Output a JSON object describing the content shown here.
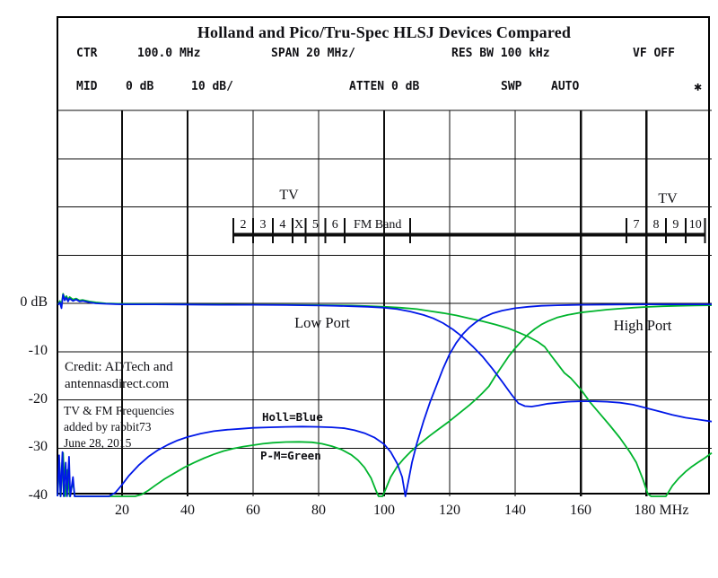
{
  "header": {
    "title": "Holland and Pico/Tru-Spec HLSJ Devices Compared",
    "row1": [
      {
        "label": "CTR"
      },
      {
        "label": "100.0 MHz"
      },
      {
        "label": "SPAN 20 MHz/"
      },
      {
        "label": "RES BW 100 kHz"
      },
      {
        "label": "VF OFF"
      }
    ],
    "row2": [
      {
        "label": "MID"
      },
      {
        "label": "0 dB"
      },
      {
        "label": "10 dB/"
      },
      {
        "label": "ATTEN 0 dB"
      },
      {
        "label": "SWP"
      },
      {
        "label": "AUTO"
      },
      {
        "label": "✱"
      }
    ]
  },
  "annotations": {
    "tv_left": "TV",
    "tv_right": "TV",
    "low_port": "Low Port",
    "high_port": "High Port",
    "legend_blue": "Holl=Blue",
    "legend_green": "P-M=Green",
    "credit_line1": "Credit: ADTech and",
    "credit_line2": "antennasdirect.com",
    "note_line1": "TV & FM Frequencies",
    "note_line2": "added by rabbit73",
    "note_line3": "June 28, 2015"
  },
  "chart_data": {
    "type": "line",
    "title": "Holland and Pico/Tru-Spec HLSJ Devices Compared",
    "xlabel": "MHz",
    "ylabel": "dB",
    "x_axis": {
      "unit": "MHz",
      "range": [
        0,
        200
      ],
      "mhz_per_div": 20,
      "ticks": [
        {
          "mhz": 20,
          "label": "20"
        },
        {
          "mhz": 40,
          "label": "40"
        },
        {
          "mhz": 60,
          "label": "60"
        },
        {
          "mhz": 80,
          "label": "80"
        },
        {
          "mhz": 100,
          "label": "100"
        },
        {
          "mhz": 120,
          "label": "120"
        },
        {
          "mhz": 140,
          "label": "140"
        },
        {
          "mhz": 160,
          "label": "160"
        },
        {
          "mhz": 180,
          "label": "180 MHz"
        }
      ]
    },
    "y_axis": {
      "unit": "dB",
      "db_per_div": 10,
      "labeled_range": [
        -40,
        0
      ],
      "ticks": [
        {
          "db": 0,
          "label": "0 dB"
        },
        {
          "db": -10,
          "label": "-10"
        },
        {
          "db": -20,
          "label": "-20"
        },
        {
          "db": -30,
          "label": "-30"
        },
        {
          "db": -40,
          "label": "-40"
        }
      ]
    },
    "band_markers": {
      "line_from_mhz": 54,
      "line_to_mhz": 198,
      "ticks_mhz": [
        54,
        60,
        66,
        72,
        76,
        82,
        88,
        108,
        174,
        180,
        186,
        192,
        198
      ],
      "labels": [
        {
          "text": "2",
          "mhz": 57
        },
        {
          "text": "3",
          "mhz": 63
        },
        {
          "text": "4",
          "mhz": 69
        },
        {
          "text": "X",
          "mhz": 74
        },
        {
          "text": "5",
          "mhz": 79
        },
        {
          "text": "6",
          "mhz": 85
        },
        {
          "text": "FM Band",
          "mhz": 98
        },
        {
          "text": "7",
          "mhz": 177
        },
        {
          "text": "8",
          "mhz": 183
        },
        {
          "text": "9",
          "mhz": 189
        },
        {
          "text": "10",
          "mhz": 195
        }
      ]
    },
    "colors": {
      "holland": "#0018e8",
      "pico_tru_spec": "#00b42d"
    },
    "series": [
      {
        "name": "Holland low port",
        "color": "#0018e8",
        "points": [
          [
            0.5,
            -0.3
          ],
          [
            1,
            0.2
          ],
          [
            1.5,
            -1
          ],
          [
            2,
            1.8
          ],
          [
            2.5,
            0.6
          ],
          [
            3,
            1.2
          ],
          [
            3.5,
            0.4
          ],
          [
            4,
            1
          ],
          [
            5,
            0.5
          ],
          [
            6,
            0.8
          ],
          [
            7,
            0.4
          ],
          [
            8,
            0.5
          ],
          [
            10,
            0.2
          ],
          [
            12,
            0
          ],
          [
            15,
            -0.1
          ],
          [
            20,
            -0.2
          ],
          [
            30,
            -0.2
          ],
          [
            40,
            -0.25
          ],
          [
            50,
            -0.3
          ],
          [
            60,
            -0.3
          ],
          [
            70,
            -0.35
          ],
          [
            80,
            -0.45
          ],
          [
            85,
            -0.5
          ],
          [
            90,
            -0.6
          ],
          [
            95,
            -0.7
          ],
          [
            100,
            -0.9
          ],
          [
            104,
            -1.2
          ],
          [
            108,
            -1.7
          ],
          [
            112,
            -2.4
          ],
          [
            115,
            -3.1
          ],
          [
            118,
            -4.1
          ],
          [
            121,
            -5.4
          ],
          [
            124,
            -7
          ],
          [
            127,
            -8.9
          ],
          [
            130,
            -11
          ],
          [
            133,
            -13.5
          ],
          [
            136,
            -16.2
          ],
          [
            139,
            -19
          ],
          [
            141,
            -20.7
          ],
          [
            143,
            -21.3
          ],
          [
            145,
            -21.4
          ],
          [
            147,
            -21.2
          ],
          [
            150,
            -20.8
          ],
          [
            153,
            -20.6
          ],
          [
            156,
            -20.4
          ],
          [
            160,
            -20.3
          ],
          [
            164,
            -20.3
          ],
          [
            168,
            -20.4
          ],
          [
            172,
            -20.6
          ],
          [
            176,
            -21
          ],
          [
            180,
            -21.7
          ],
          [
            184,
            -22.4
          ],
          [
            188,
            -23.1
          ],
          [
            192,
            -23.7
          ],
          [
            196,
            -24.1
          ],
          [
            200,
            -24.5
          ]
        ]
      },
      {
        "name": "Holland high port",
        "color": "#0018e8",
        "points": [
          [
            0.3,
            -40
          ],
          [
            0.8,
            -31.5
          ],
          [
            1.2,
            -40
          ],
          [
            1.8,
            -30.8
          ],
          [
            2.2,
            -40
          ],
          [
            2.8,
            -33
          ],
          [
            3.2,
            -40
          ],
          [
            3.8,
            -31.8
          ],
          [
            4.2,
            -40
          ],
          [
            5,
            -36
          ],
          [
            5.5,
            -40
          ],
          [
            8,
            -40
          ],
          [
            12,
            -40
          ],
          [
            16,
            -40
          ],
          [
            18,
            -39.2
          ],
          [
            20,
            -37.6
          ],
          [
            22,
            -35.8
          ],
          [
            25,
            -33.6
          ],
          [
            28,
            -31.8
          ],
          [
            31,
            -30.4
          ],
          [
            34,
            -29.3
          ],
          [
            37,
            -28.4
          ],
          [
            40,
            -27.7
          ],
          [
            44,
            -27
          ],
          [
            48,
            -26.5
          ],
          [
            52,
            -26.2
          ],
          [
            56,
            -26
          ],
          [
            60,
            -25.8
          ],
          [
            65,
            -25.7
          ],
          [
            70,
            -25.6
          ],
          [
            75,
            -25.55
          ],
          [
            80,
            -25.6
          ],
          [
            84,
            -25.7
          ],
          [
            88,
            -25.9
          ],
          [
            91,
            -26.3
          ],
          [
            94,
            -26.9
          ],
          [
            97,
            -27.8
          ],
          [
            100,
            -29.2
          ],
          [
            102,
            -30.8
          ],
          [
            104,
            -33.2
          ],
          [
            105.5,
            -36
          ],
          [
            106.5,
            -40
          ],
          [
            107.5,
            -36.5
          ],
          [
            108.5,
            -33
          ],
          [
            110,
            -29
          ],
          [
            112,
            -24.5
          ],
          [
            114,
            -20.5
          ],
          [
            116,
            -17
          ],
          [
            118,
            -13.5
          ],
          [
            120,
            -10.5
          ],
          [
            122,
            -8.2
          ],
          [
            124,
            -6.4
          ],
          [
            126,
            -5
          ],
          [
            128,
            -3.9
          ],
          [
            130,
            -3
          ],
          [
            133,
            -2.1
          ],
          [
            136,
            -1.5
          ],
          [
            140,
            -1
          ],
          [
            144,
            -0.7
          ],
          [
            148,
            -0.5
          ],
          [
            153,
            -0.4
          ],
          [
            160,
            -0.3
          ],
          [
            170,
            -0.25
          ],
          [
            180,
            -0.2
          ],
          [
            190,
            -0.2
          ],
          [
            200,
            -0.2
          ]
        ]
      },
      {
        "name": "Pico/Tru-Spec P-M low port",
        "color": "#00b42d",
        "points": [
          [
            0.5,
            -0.2
          ],
          [
            1,
            0.5
          ],
          [
            1.5,
            -0.3
          ],
          [
            2,
            2
          ],
          [
            2.5,
            1
          ],
          [
            3,
            1.5
          ],
          [
            3.5,
            0.8
          ],
          [
            4,
            1.3
          ],
          [
            5,
            0.8
          ],
          [
            6,
            1
          ],
          [
            7,
            0.6
          ],
          [
            8,
            0.7
          ],
          [
            10,
            0.4
          ],
          [
            12,
            0.2
          ],
          [
            15,
            0
          ],
          [
            20,
            -0.1
          ],
          [
            30,
            -0.15
          ],
          [
            40,
            -0.2
          ],
          [
            50,
            -0.25
          ],
          [
            60,
            -0.3
          ],
          [
            70,
            -0.3
          ],
          [
            80,
            -0.35
          ],
          [
            90,
            -0.45
          ],
          [
            95,
            -0.55
          ],
          [
            100,
            -0.7
          ],
          [
            105,
            -0.9
          ],
          [
            110,
            -1.2
          ],
          [
            114,
            -1.6
          ],
          [
            118,
            -2
          ],
          [
            122,
            -2.5
          ],
          [
            126,
            -3.1
          ],
          [
            130,
            -3.7
          ],
          [
            134,
            -4.4
          ],
          [
            138,
            -5.2
          ],
          [
            141,
            -6
          ],
          [
            144,
            -6.9
          ],
          [
            147,
            -8
          ],
          [
            149,
            -9
          ],
          [
            151,
            -10.8
          ],
          [
            153,
            -12.6
          ],
          [
            155,
            -14.4
          ],
          [
            157,
            -15.5
          ],
          [
            160,
            -17.8
          ],
          [
            163,
            -20.6
          ],
          [
            166,
            -23
          ],
          [
            169,
            -25.4
          ],
          [
            172,
            -27.9
          ],
          [
            175,
            -30.8
          ],
          [
            177,
            -33
          ],
          [
            179,
            -36.5
          ],
          [
            180.5,
            -39.5
          ],
          [
            181.5,
            -40
          ],
          [
            186,
            -40
          ],
          [
            188,
            -37.8
          ],
          [
            190,
            -36.2
          ],
          [
            192,
            -34.9
          ],
          [
            194,
            -33.8
          ],
          [
            196,
            -32.9
          ],
          [
            198,
            -32
          ],
          [
            200,
            -31
          ]
        ]
      },
      {
        "name": "Pico/Tru-Spec P-M high port",
        "color": "#00b42d",
        "points": [
          [
            0.3,
            -40
          ],
          [
            0.9,
            -33
          ],
          [
            1.3,
            -40
          ],
          [
            2,
            -31
          ],
          [
            2.6,
            -40
          ],
          [
            3.4,
            -34.5
          ],
          [
            4,
            -40
          ],
          [
            5,
            -37
          ],
          [
            5.6,
            -40
          ],
          [
            10,
            -40
          ],
          [
            15,
            -40
          ],
          [
            20,
            -40
          ],
          [
            24,
            -40
          ],
          [
            26,
            -39.6
          ],
          [
            28,
            -38.8
          ],
          [
            30,
            -37.8
          ],
          [
            33,
            -36.4
          ],
          [
            36,
            -35.2
          ],
          [
            39,
            -34
          ],
          [
            42,
            -33
          ],
          [
            45,
            -32.1
          ],
          [
            48,
            -31.3
          ],
          [
            51,
            -30.6
          ],
          [
            54,
            -30.1
          ],
          [
            57,
            -29.7
          ],
          [
            60,
            -29.4
          ],
          [
            63,
            -29.1
          ],
          [
            66,
            -28.9
          ],
          [
            70,
            -28.75
          ],
          [
            74,
            -28.7
          ],
          [
            78,
            -28.8
          ],
          [
            81,
            -29.1
          ],
          [
            84,
            -29.6
          ],
          [
            87,
            -30.3
          ],
          [
            90,
            -31.4
          ],
          [
            92,
            -32.5
          ],
          [
            94,
            -34
          ],
          [
            96,
            -36.2
          ],
          [
            97.5,
            -38.8
          ],
          [
            98.3,
            -40
          ],
          [
            99.5,
            -40
          ],
          [
            100.5,
            -38.5
          ],
          [
            102,
            -36
          ],
          [
            104,
            -33.8
          ],
          [
            106,
            -32.2
          ],
          [
            108,
            -30.8
          ],
          [
            110,
            -29.6
          ],
          [
            112,
            -28.5
          ],
          [
            114,
            -27.4
          ],
          [
            116,
            -26.4
          ],
          [
            118,
            -25.4
          ],
          [
            120,
            -24.4
          ],
          [
            122,
            -23.3
          ],
          [
            124,
            -22.2
          ],
          [
            126,
            -21.1
          ],
          [
            128,
            -19.9
          ],
          [
            130,
            -18.6
          ],
          [
            132,
            -17.2
          ],
          [
            134,
            -15
          ],
          [
            136,
            -13
          ],
          [
            138,
            -11
          ],
          [
            140,
            -9.3
          ],
          [
            142,
            -7.8
          ],
          [
            144,
            -6.4
          ],
          [
            146,
            -5.3
          ],
          [
            148,
            -4.4
          ],
          [
            150,
            -3.7
          ],
          [
            153,
            -2.9
          ],
          [
            156,
            -2.4
          ],
          [
            160,
            -1.9
          ],
          [
            164,
            -1.6
          ],
          [
            168,
            -1.3
          ],
          [
            172,
            -1.1
          ],
          [
            176,
            -0.9
          ],
          [
            180,
            -0.75
          ],
          [
            185,
            -0.6
          ],
          [
            190,
            -0.5
          ],
          [
            195,
            -0.45
          ],
          [
            200,
            -0.4
          ]
        ]
      }
    ]
  }
}
